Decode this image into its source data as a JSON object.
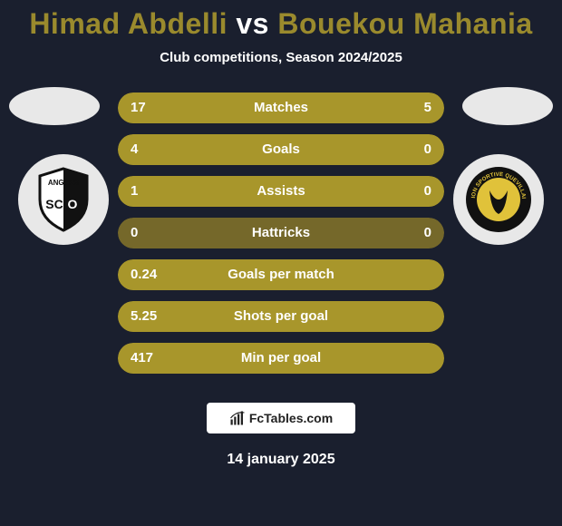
{
  "colors": {
    "background": "#1a1f2e",
    "title_p1": "#9a8a2d",
    "title_vs": "#ffffff",
    "title_p2": "#9a8a2d",
    "subtitle": "#ffffff",
    "ellipse_left": "#e8e8e8",
    "ellipse_right": "#e8e8e8",
    "badge_left_bg": "#e8e8e8",
    "badge_right_bg": "#e8e8e8",
    "row_track": "#75682a",
    "row_fill": "#a8962b",
    "row_text": "#ffffff",
    "footer_badge_bg": "#ffffff",
    "footer_badge_text": "#222222",
    "footer_date": "#ffffff"
  },
  "title": {
    "p1": "Himad Abdelli",
    "vs": "vs",
    "p2": "Bouekou Mahania"
  },
  "subtitle": "Club competitions, Season 2024/2025",
  "rows": [
    {
      "left": "17",
      "center": "Matches",
      "right": "5",
      "fill_pct": 100
    },
    {
      "left": "4",
      "center": "Goals",
      "right": "0",
      "fill_pct": 100
    },
    {
      "left": "1",
      "center": "Assists",
      "right": "0",
      "fill_pct": 100
    },
    {
      "left": "0",
      "center": "Hattricks",
      "right": "0",
      "fill_pct": 0
    },
    {
      "left": "0.24",
      "center": "Goals per match",
      "right": "",
      "fill_pct": 100
    },
    {
      "left": "5.25",
      "center": "Shots per goal",
      "right": "",
      "fill_pct": 100
    },
    {
      "left": "417",
      "center": "Min per goal",
      "right": "",
      "fill_pct": 100
    }
  ],
  "footer": {
    "brand_prefix": "Fc",
    "brand_suffix": "Tables.com",
    "date": "14 january 2025"
  },
  "club_left": {
    "name": "ANGERS SCO",
    "shield_bg": "#ffffff",
    "shield_stroke": "#111111",
    "stripe": "#111111"
  },
  "club_right": {
    "name": "UNION SPORTIVE QUEVILLAISE",
    "circle_bg": "#111111",
    "inner": "#e0c23a"
  }
}
